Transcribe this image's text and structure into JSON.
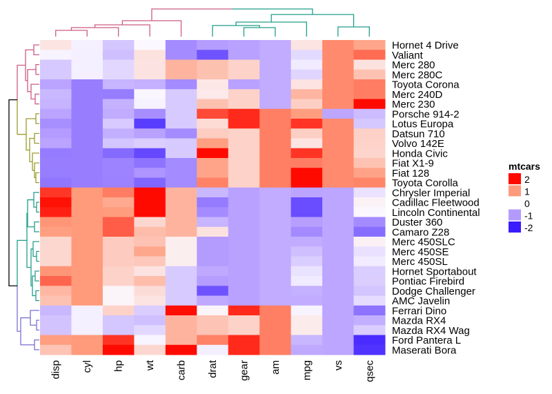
{
  "chart_data": {
    "type": "heatmap",
    "title": "",
    "legend": {
      "title": "mtcars",
      "ticks": [
        2,
        1,
        0,
        -1,
        -2
      ],
      "placement": "right"
    },
    "color_scale": {
      "-2": "#3a1cff",
      "-1": "#b39aff",
      "0": "#fbf9ff",
      "1": "#ff9b7c",
      "2": "#ff0a00"
    },
    "dendrogram_colors": {
      "columns": [
        "#cc5a83",
        "#1f9e89"
      ],
      "rows": [
        "#cc5a83",
        "#9c9c2c",
        "#1f9e89",
        "#7b6fd2"
      ],
      "root": "#000000"
    },
    "columns": [
      "disp",
      "cyl",
      "hp",
      "wt",
      "carb",
      "drat",
      "gear",
      "am",
      "mpg",
      "vs",
      "qsec"
    ],
    "rows": [
      "Hornet 4 Drive",
      "Valiant",
      "Merc 280",
      "Merc 280C",
      "Toyota Corona",
      "Merc 240D",
      "Merc 230",
      "Porsche 914-2",
      "Lotus Europa",
      "Datsun 710",
      "Volvo 142E",
      "Honda Civic",
      "Fiat X1-9",
      "Fiat 128",
      "Toyota Corolla",
      "Chrysler Imperial",
      "Cadillac Fleetwood",
      "Lincoln Continental",
      "Duster 360",
      "Camaro Z28",
      "Merc 450SLC",
      "Merc 450SE",
      "Merc 450SL",
      "Hornet Sportabout",
      "Pontiac Firebird",
      "Dodge Challenger",
      "AMC Javelin",
      "Ferrari Dino",
      "Mazda RX4",
      "Mazda RX4 Wag",
      "Ford Pantera L",
      "Maserati Bora"
    ],
    "values": [
      [
        0.22,
        -0.1,
        -0.54,
        0.0,
        -1.12,
        -0.97,
        -0.93,
        -0.81,
        0.22,
        1.12,
        0.89
      ],
      [
        -0.05,
        -0.1,
        -0.61,
        0.25,
        -1.12,
        -1.56,
        -0.93,
        -0.81,
        -0.33,
        1.12,
        1.33
      ],
      [
        -0.51,
        -0.1,
        -0.35,
        0.23,
        0.74,
        0.6,
        0.42,
        -0.81,
        -0.15,
        1.12,
        0.25
      ],
      [
        -0.51,
        -0.1,
        -0.35,
        0.23,
        0.74,
        0.6,
        0.42,
        -0.81,
        -0.38,
        1.12,
        0.59
      ],
      [
        -0.89,
        -1.22,
        -0.72,
        -0.77,
        -1.12,
        0.19,
        -0.93,
        -0.81,
        0.23,
        1.12,
        1.21
      ],
      [
        -0.68,
        -1.22,
        -1.24,
        -0.03,
        -0.5,
        0.17,
        0.42,
        -0.81,
        0.72,
        1.12,
        1.2
      ],
      [
        -0.73,
        -1.22,
        -0.75,
        -0.07,
        -0.5,
        0.6,
        0.42,
        -0.81,
        0.45,
        1.12,
        2.83
      ],
      [
        -0.89,
        -1.22,
        -0.81,
        -1.1,
        -0.5,
        1.56,
        1.78,
        1.19,
        0.98,
        -0.87,
        -0.64
      ],
      [
        -1.09,
        -1.22,
        -0.49,
        -1.74,
        -0.5,
        0.32,
        1.78,
        1.19,
        1.71,
        1.12,
        -0.53
      ],
      [
        -0.99,
        -1.22,
        -0.78,
        -0.92,
        -1.12,
        0.47,
        0.42,
        1.19,
        0.45,
        1.12,
        0.43
      ],
      [
        -0.89,
        -1.22,
        -0.55,
        -0.45,
        -0.5,
        0.96,
        0.42,
        1.19,
        0.22,
        1.12,
        0.42
      ],
      [
        -1.25,
        -1.22,
        -1.38,
        -1.64,
        -0.5,
        2.49,
        0.42,
        1.19,
        1.71,
        1.12,
        0.38
      ],
      [
        -1.22,
        -1.22,
        -1.18,
        -1.31,
        -1.12,
        0.9,
        0.42,
        1.19,
        1.2,
        1.12,
        0.59
      ],
      [
        -1.23,
        -1.22,
        -1.18,
        -1.04,
        -1.12,
        0.9,
        0.42,
        1.19,
        2.04,
        1.12,
        0.91
      ],
      [
        -1.29,
        -1.22,
        -1.19,
        -1.41,
        -1.12,
        1.17,
        0.42,
        1.19,
        2.29,
        1.12,
        1.15
      ],
      [
        1.69,
        1.01,
        1.21,
        2.17,
        0.74,
        -0.69,
        -0.93,
        -0.81,
        -0.89,
        -0.87,
        -0.24
      ],
      [
        1.95,
        1.01,
        0.85,
        2.08,
        0.74,
        -1.25,
        -0.93,
        -0.81,
        -1.61,
        -0.87,
        0.07
      ],
      [
        1.85,
        1.01,
        0.99,
        2.26,
        0.74,
        -1.12,
        -0.93,
        -0.81,
        -1.61,
        -0.87,
        -0.02
      ],
      [
        1.04,
        1.01,
        1.43,
        0.36,
        0.74,
        -0.72,
        -0.93,
        -0.81,
        -0.96,
        -0.87,
        -1.12
      ],
      [
        0.96,
        1.01,
        1.43,
        0.64,
        0.74,
        0.25,
        -0.93,
        -0.81,
        -1.13,
        -0.87,
        -1.36
      ],
      [
        0.36,
        1.01,
        0.49,
        0.58,
        0.12,
        -0.98,
        -0.93,
        -0.81,
        -0.81,
        -0.87,
        0.08
      ],
      [
        0.36,
        1.01,
        0.49,
        0.87,
        0.12,
        -0.98,
        -0.93,
        -0.81,
        -0.61,
        -0.87,
        -0.25
      ],
      [
        0.36,
        1.01,
        0.49,
        0.52,
        0.12,
        -0.98,
        -0.93,
        -0.81,
        -0.46,
        -0.87,
        -0.14
      ],
      [
        1.04,
        1.01,
        0.41,
        0.23,
        -0.5,
        -0.84,
        -0.93,
        -0.81,
        -0.23,
        -0.87,
        -0.46
      ],
      [
        1.37,
        1.01,
        0.41,
        0.64,
        -0.5,
        -0.97,
        -0.93,
        -0.81,
        -0.15,
        -0.87,
        -0.45
      ],
      [
        0.7,
        1.01,
        0.05,
        0.31,
        -0.5,
        -1.56,
        -0.93,
        -0.81,
        -0.76,
        -0.87,
        -0.55
      ],
      [
        0.59,
        1.01,
        0.05,
        0.22,
        -0.5,
        -0.84,
        -0.93,
        -0.81,
        -0.81,
        -0.87,
        -0.31
      ],
      [
        -0.69,
        -0.1,
        0.41,
        -0.46,
        1.97,
        0.04,
        1.78,
        1.19,
        -0.06,
        -0.87,
        -1.31
      ],
      [
        -0.57,
        -0.1,
        -0.54,
        -0.61,
        0.74,
        0.57,
        0.42,
        1.19,
        0.15,
        -0.87,
        -0.78
      ],
      [
        -0.57,
        -0.1,
        -0.54,
        -0.35,
        0.74,
        0.57,
        0.42,
        1.19,
        0.15,
        -0.87,
        -0.46
      ],
      [
        0.97,
        1.01,
        1.71,
        -0.05,
        0.74,
        1.17,
        1.78,
        1.19,
        -0.71,
        -0.87,
        -1.87
      ],
      [
        0.57,
        1.01,
        2.75,
        0.36,
        3.21,
        -0.11,
        1.78,
        1.19,
        -0.84,
        -0.87,
        -1.82
      ]
    ]
  }
}
